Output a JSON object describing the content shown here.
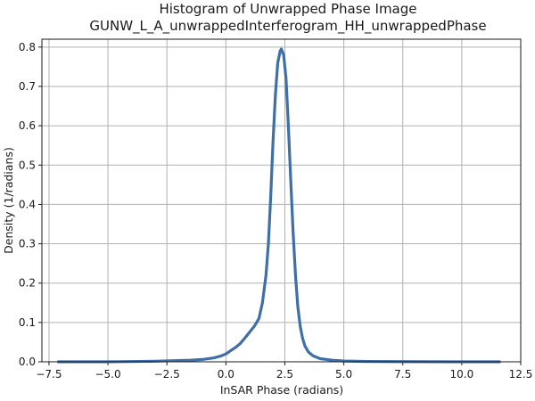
{
  "chart_data": {
    "type": "line",
    "title": "Histogram of Unwrapped Phase Image",
    "subtitle": "GUNW_L_A_unwrappedInterferogram_HH_unwrappedPhase",
    "xlabel": "InSAR Phase (radians)",
    "ylabel": "Density (1/radians)",
    "xlim": [
      -7.8,
      12.5
    ],
    "ylim": [
      0,
      0.82
    ],
    "xticks": [
      -7.5,
      -5.0,
      -2.5,
      0.0,
      2.5,
      5.0,
      7.5,
      10.0,
      12.5
    ],
    "xtick_labels": [
      "−7.5",
      "−5.0",
      "−2.5",
      "0.0",
      "2.5",
      "5.0",
      "7.5",
      "10.0",
      "12.5"
    ],
    "yticks": [
      0.0,
      0.1,
      0.2,
      0.3,
      0.4,
      0.5,
      0.6,
      0.7,
      0.8
    ],
    "ytick_labels": [
      "0.0",
      "0.1",
      "0.2",
      "0.3",
      "0.4",
      "0.5",
      "0.6",
      "0.7",
      "0.8"
    ],
    "grid": true,
    "line_color": "#3e6fa8",
    "series": [
      {
        "x": [
          -7.1,
          -5.0,
          -3.0,
          -1.5,
          -1.0,
          -0.5,
          -0.2,
          0.0,
          0.2,
          0.4,
          0.6,
          0.8,
          1.0,
          1.2,
          1.4,
          1.55,
          1.7,
          1.8,
          1.9,
          2.0,
          2.1,
          2.2,
          2.3,
          2.35,
          2.45,
          2.55,
          2.65,
          2.75,
          2.85,
          2.95,
          3.05,
          3.15,
          3.25,
          3.35,
          3.5,
          3.7,
          4.0,
          4.5,
          5.0,
          6.0,
          8.0,
          10.0,
          11.6
        ],
        "y": [
          0.0,
          0.0,
          0.0015,
          0.004,
          0.006,
          0.01,
          0.015,
          0.02,
          0.028,
          0.036,
          0.046,
          0.06,
          0.075,
          0.09,
          0.11,
          0.15,
          0.22,
          0.3,
          0.42,
          0.56,
          0.68,
          0.76,
          0.79,
          0.795,
          0.78,
          0.72,
          0.6,
          0.46,
          0.33,
          0.22,
          0.14,
          0.09,
          0.06,
          0.04,
          0.025,
          0.015,
          0.008,
          0.004,
          0.002,
          0.001,
          0.0003,
          0.0001,
          0.0
        ]
      }
    ]
  }
}
